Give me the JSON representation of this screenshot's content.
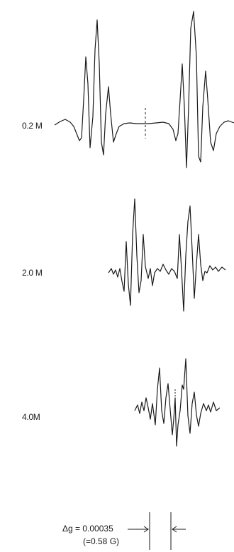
{
  "traces": [
    {
      "label": "0.2 M"
    },
    {
      "label": "2.0 M"
    },
    {
      "label": "4.0M"
    }
  ],
  "scale": {
    "text": "Δg = 0.00035",
    "subtext": "(=0.58 G)"
  }
}
